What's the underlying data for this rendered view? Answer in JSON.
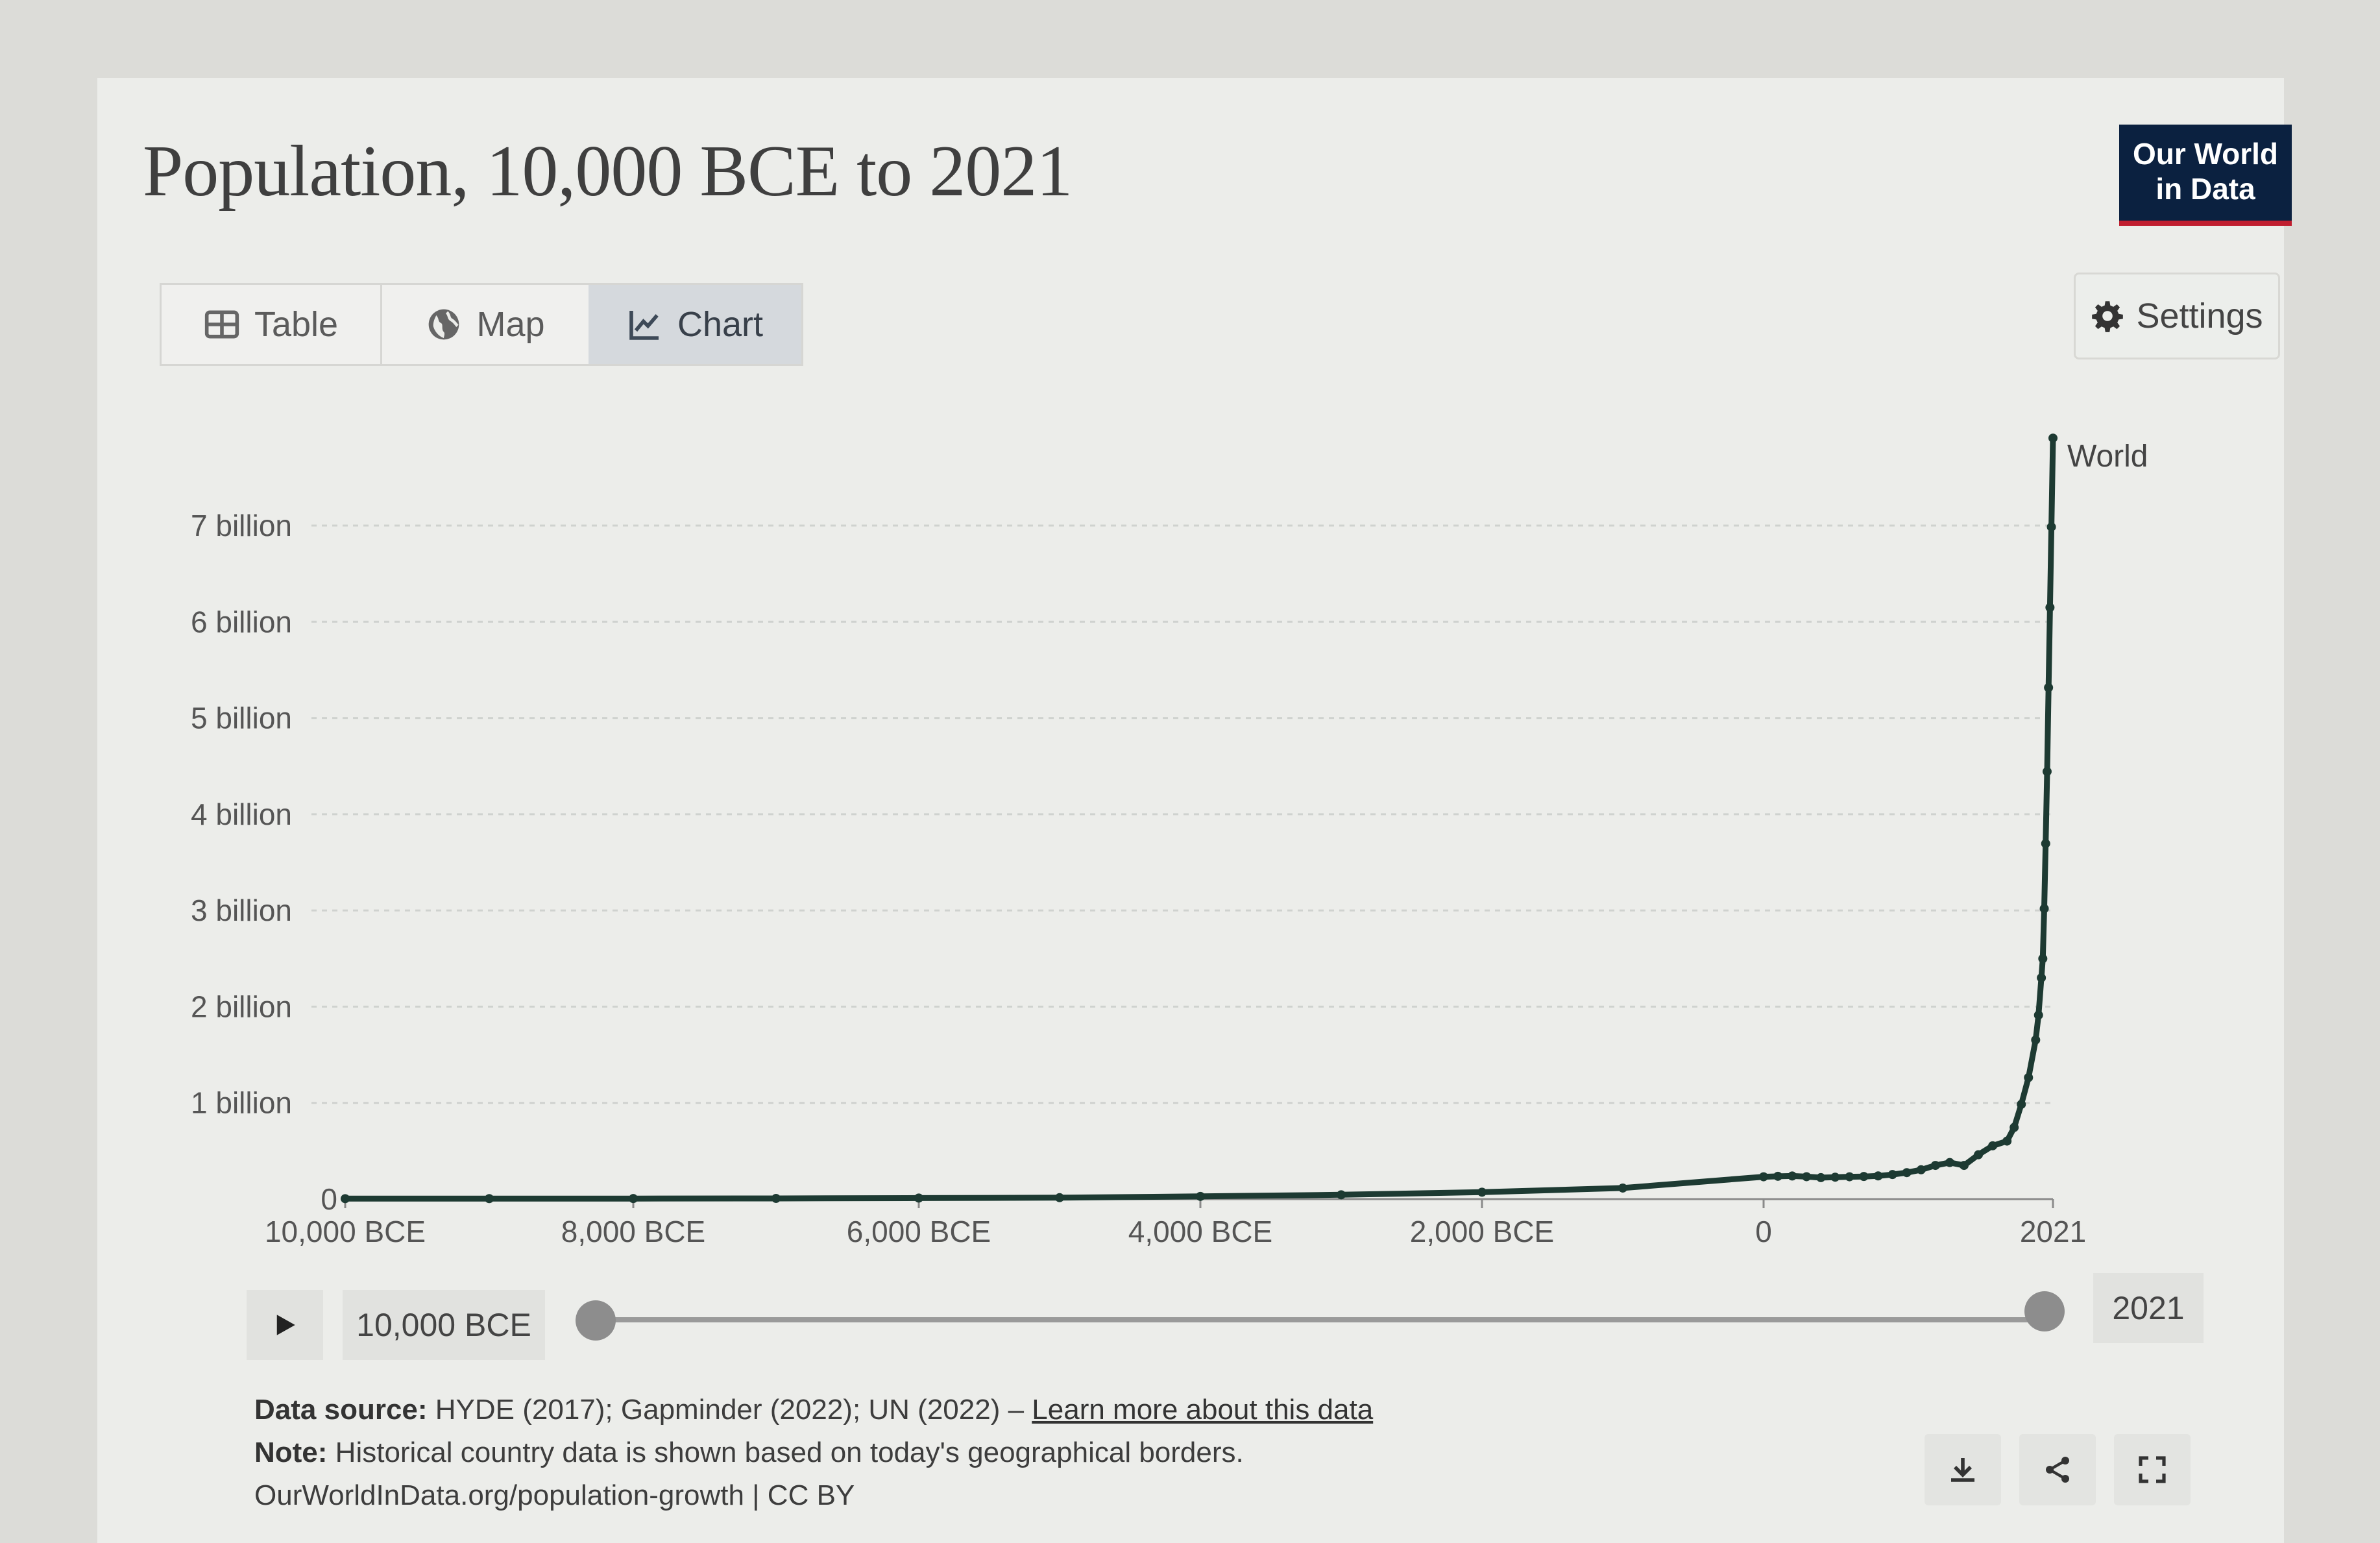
{
  "header": {
    "title": "Population, 10,000 BCE to 2021",
    "logo_line1": "Our World",
    "logo_line2": "in Data"
  },
  "tabs": [
    {
      "label": "Table",
      "icon": "table-icon",
      "active": false
    },
    {
      "label": "Map",
      "icon": "globe-icon",
      "active": false
    },
    {
      "label": "Chart",
      "icon": "line-chart-icon",
      "active": true
    }
  ],
  "settings_label": "Settings",
  "colors": {
    "line": "#1d3a32",
    "brand_bg": "#0b2140",
    "brand_accent": "#c01e2f",
    "active_tab": "#d5d9dd"
  },
  "chart_data": {
    "type": "line",
    "title": "Population, 10,000 BCE to 2021",
    "xlabel": "",
    "ylabel": "",
    "xlim": [
      -10000,
      2021
    ],
    "ylim": [
      0,
      7900000000
    ],
    "grid": true,
    "x_tick_values": [
      -10000,
      -8000,
      -6000,
      -4000,
      -2000,
      0,
      2021
    ],
    "x_tick_labels": [
      "10,000 BCE",
      "8,000 BCE",
      "6,000 BCE",
      "4,000 BCE",
      "2,000 BCE",
      "0",
      "2021"
    ],
    "y_tick_values": [
      0,
      1000000000,
      2000000000,
      3000000000,
      4000000000,
      5000000000,
      6000000000,
      7000000000
    ],
    "y_tick_labels": [
      "0",
      "1 billion",
      "2 billion",
      "3 billion",
      "4 billion",
      "5 billion",
      "6 billion",
      "7 billion"
    ],
    "series": [
      {
        "name": "World",
        "x": [
          -10000,
          -9000,
          -8000,
          -7000,
          -6000,
          -5000,
          -4000,
          -3000,
          -2000,
          -1000,
          0,
          100,
          200,
          300,
          400,
          500,
          600,
          700,
          800,
          900,
          1000,
          1100,
          1200,
          1300,
          1400,
          1500,
          1600,
          1700,
          1750,
          1800,
          1850,
          1900,
          1920,
          1940,
          1950,
          1960,
          1970,
          1980,
          1990,
          2000,
          2010,
          2021
        ],
        "values": [
          4430000,
          5000000,
          5510000,
          7000000,
          11000000,
          15000000,
          28000000,
          45000000,
          72000000,
          115000000,
          232000000,
          237000000,
          240000000,
          233000000,
          223000000,
          228000000,
          232000000,
          235000000,
          241000000,
          255000000,
          275000000,
          305000000,
          350000000,
          380000000,
          350000000,
          461000000,
          554000000,
          603000000,
          745000000,
          985000000,
          1263000000,
          1654000000,
          1912000000,
          2300000000,
          2499000000,
          3019000000,
          3695000000,
          4444000000,
          5316000000,
          6149000000,
          6986000000,
          7909000000
        ]
      }
    ]
  },
  "timeline": {
    "start_label": "10,000 BCE",
    "end_label": "2021"
  },
  "footer": {
    "source_prefix": "Data source:",
    "source_text": " HYDE (2017); Gapminder (2022); UN (2022) – ",
    "source_link": "Learn more about this data",
    "note_prefix": "Note:",
    "note_text": " Historical country data is shown based on today's geographical borders.",
    "url_text": "OurWorldInData.org/population-growth | CC BY"
  },
  "actions": [
    {
      "icon": "download-icon"
    },
    {
      "icon": "share-icon"
    },
    {
      "icon": "fullscreen-icon"
    }
  ]
}
